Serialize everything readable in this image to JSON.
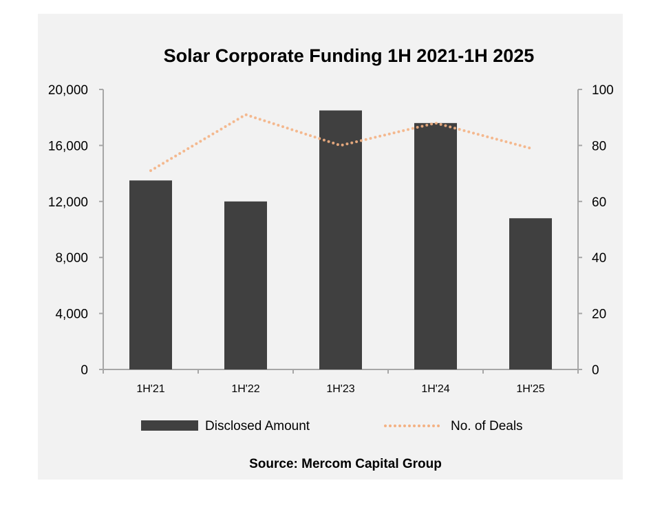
{
  "chart_data": {
    "type": "bar+line",
    "title": "Solar Corporate Funding 1H 2021-1H 2025",
    "categories": [
      "1H'21",
      "1H'22",
      "1H'23",
      "1H'24",
      "1H'25"
    ],
    "series": [
      {
        "name": "Disclosed Amount",
        "type": "bar",
        "axis": "left",
        "color": "#404040",
        "values": [
          13500,
          12000,
          18500,
          17600,
          10800
        ]
      },
      {
        "name": "No. of Deals",
        "type": "line",
        "style": "dotted",
        "axis": "right",
        "color": "#f4b183",
        "values": [
          71,
          91,
          80,
          88,
          79
        ]
      }
    ],
    "y_left": {
      "range": [
        0,
        20000
      ],
      "ticks": [
        "0",
        "4,000",
        "8,000",
        "12,000",
        "16,000",
        "20,000"
      ]
    },
    "y_right": {
      "range": [
        0,
        100
      ],
      "ticks": [
        "0",
        "20",
        "40",
        "60",
        "80",
        "100"
      ]
    },
    "grid": false,
    "legend": "bottom",
    "source": "Source: Mercom Capital Group"
  }
}
